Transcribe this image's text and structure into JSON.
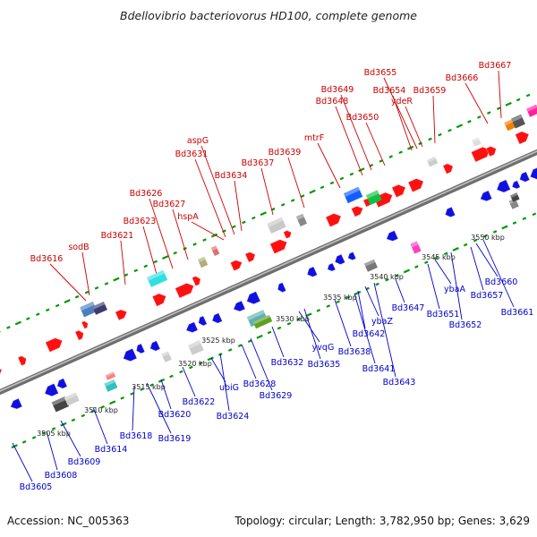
{
  "title": "Bdellovibrio bacteriovorus HD100, complete genome",
  "accession": "Accession: NC_005363",
  "summary": "Topology: circular; Length: 3,782,950 bp; Genes: 3,629",
  "colors": {
    "forward_gene": "#ff1010",
    "reverse_gene": "#1010e0",
    "forward_label": "#cc0000",
    "reverse_label": "#0000cc",
    "backbone": "#8a8a8a",
    "tick": "#009900"
  },
  "kbp_ticks": [
    "3505 kbp",
    "3510 kbp",
    "3515 kbp",
    "3520 kbp",
    "3525 kbp",
    "3530 kbp",
    "3535 kbp",
    "3540 kbp",
    "3545 kbp",
    "3550 kbp"
  ],
  "top_labels": [
    "Bd3616",
    "sodB",
    "Bd3621",
    "Bd3623",
    "Bd3626",
    "Bd3627",
    "hspA",
    "Bd3631",
    "aspG",
    "Bd3634",
    "Bd3637",
    "Bd3639",
    "mtrF",
    "Bd3648",
    "Bd3649",
    "Bd3650",
    "Bd3654",
    "Bd3655",
    "ydeR",
    "Bd3659",
    "Bd3666",
    "Bd3667"
  ],
  "bottom_labels": [
    "Bd3605",
    "Bd3608",
    "Bd3609",
    "Bd3614",
    "Bd3618",
    "Bd3619",
    "Bd3620",
    "Bd3622",
    "ubiG",
    "Bd3624",
    "Bd3628",
    "Bd3629",
    "Bd3632",
    "yvqG",
    "Bd3635",
    "Bd3638",
    "Bd3641",
    "Bd3642",
    "ybaZ",
    "Bd3643",
    "Bd3647",
    "ybaA",
    "Bd3651",
    "Bd3652",
    "Bd3657",
    "Bd3660",
    "Bd3661"
  ]
}
